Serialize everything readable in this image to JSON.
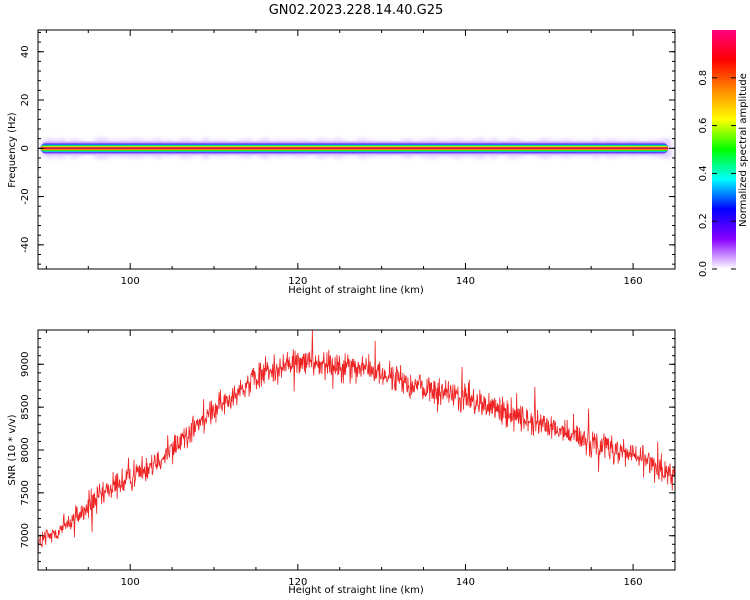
{
  "title": "GN02.2023.228.14.40.G25",
  "chart_data": [
    {
      "type": "heatmap",
      "xlabel": "Height of straight line (km)",
      "ylabel": "Frequency (Hz)",
      "xlim": [
        89,
        165
      ],
      "ylim": [
        -50,
        49
      ],
      "xticks": [
        100,
        120,
        140,
        160
      ],
      "yticks": [
        -40,
        -20,
        0,
        20,
        40
      ],
      "grid": false,
      "description_values": {
        "peak_frequency_hz": 0,
        "x_start_km": 89.3,
        "x_end_km": 164.2
      },
      "colorbar": {
        "label": "Normalized spectral amplitude",
        "range": [
          0,
          1
        ],
        "ticks": [
          "0.0",
          "0.2",
          "0.4",
          "0.6",
          "0.8"
        ],
        "colormap": [
          "#ffffff",
          "#8800ff",
          "#0000ff",
          "#00ffff",
          "#00ff00",
          "#ffff00",
          "#ff8800",
          "#ff0000",
          "#ff0080"
        ]
      }
    },
    {
      "type": "line",
      "xlabel": "Height of straight line (km)",
      "ylabel": "SNR (10 * v/v)",
      "xlim": [
        89,
        165
      ],
      "ylim": [
        6600,
        9400
      ],
      "xticks": [
        100,
        120,
        140,
        160
      ],
      "yticks": [
        7000,
        7500,
        8000,
        8500,
        9000
      ],
      "grid": false,
      "series": [
        {
          "color": "#ee2222",
          "x": [
            89,
            92,
            95,
            98,
            101,
            104,
            107,
            110,
            113,
            116,
            119,
            122,
            125,
            128,
            131,
            134,
            137,
            140,
            143,
            146,
            149,
            152,
            155,
            158,
            161,
            164,
            165
          ],
          "y": [
            6900,
            7100,
            7350,
            7550,
            7750,
            7950,
            8200,
            8450,
            8700,
            8900,
            9000,
            9030,
            9000,
            8950,
            8850,
            8750,
            8680,
            8600,
            8500,
            8400,
            8300,
            8200,
            8100,
            8000,
            7900,
            7750,
            7700
          ],
          "noise_amplitude": 150
        }
      ]
    }
  ]
}
